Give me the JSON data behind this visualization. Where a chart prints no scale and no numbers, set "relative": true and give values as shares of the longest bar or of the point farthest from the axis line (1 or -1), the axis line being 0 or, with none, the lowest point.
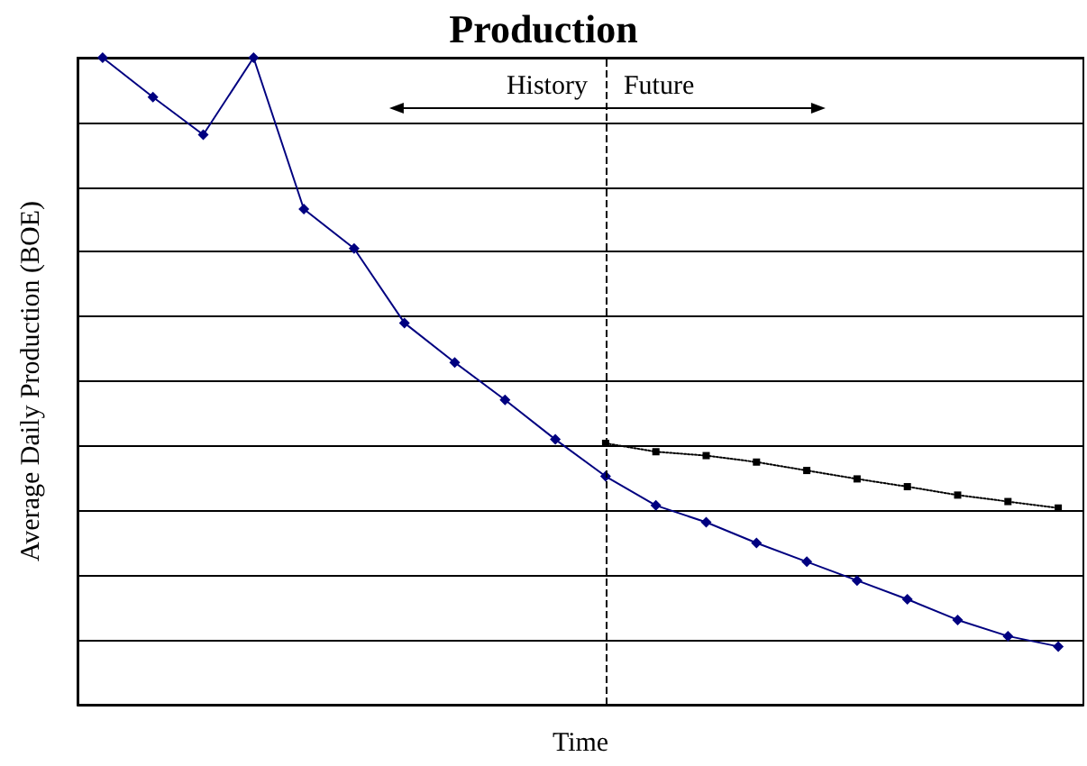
{
  "chart_data": {
    "type": "line",
    "title": "Production",
    "xlabel": "Time",
    "ylabel": "Average Daily Production (BOE)",
    "relative": true,
    "grid": "y",
    "categories": [
      null,
      null,
      null,
      null,
      null,
      null,
      null,
      null,
      null,
      null,
      null,
      null,
      null,
      null,
      null,
      null,
      null,
      null,
      null,
      null
    ],
    "series": [
      {
        "color": "#000080",
        "marker": "diamond",
        "line_style": "solid",
        "values": [
          1.0,
          0.939,
          0.881,
          1.0,
          0.766,
          0.705,
          0.59,
          0.529,
          0.471,
          0.41,
          0.353,
          0.308,
          0.282,
          0.25,
          0.221,
          0.192,
          0.163,
          0.131,
          0.106,
          0.09
        ]
      },
      {
        "color": "#000000",
        "marker": "square",
        "line_style": "dotted",
        "values": [
          null,
          null,
          null,
          null,
          null,
          null,
          null,
          null,
          null,
          null,
          0.404,
          0.391,
          0.385,
          0.375,
          0.362,
          0.349,
          0.337,
          0.324,
          0.314,
          0.304
        ]
      }
    ],
    "annotations": [
      "History",
      "Future"
    ]
  }
}
